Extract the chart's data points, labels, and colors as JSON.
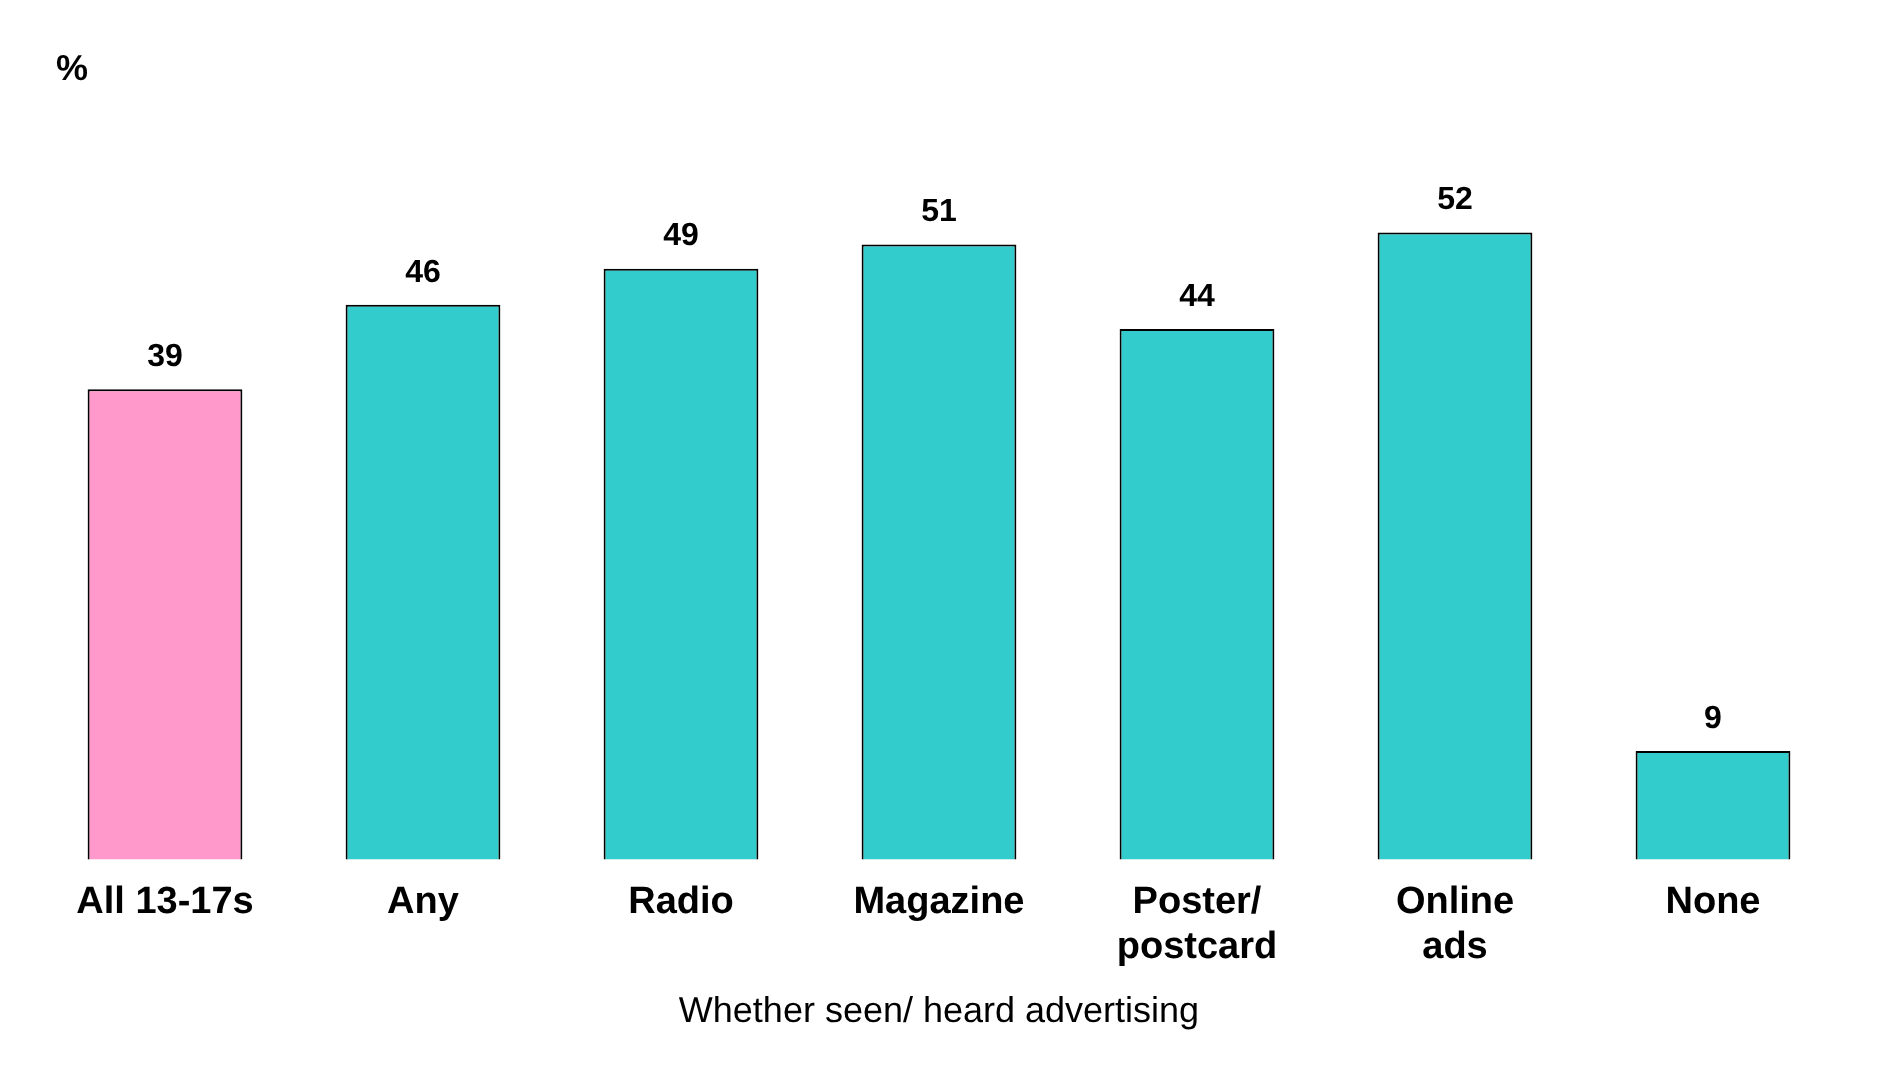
{
  "chart_data": {
    "type": "bar",
    "ylabel": "%",
    "xlabel": "Whether seen/ heard advertising",
    "categories": [
      "All 13-17s",
      "Any",
      "Radio",
      "Magazine",
      "Poster/\npostcard",
      "Online\nads",
      "None"
    ],
    "values": [
      39,
      46,
      49,
      51,
      44,
      52,
      9
    ],
    "colors": [
      "#ff99cc",
      "#33cccc",
      "#33cccc",
      "#33cccc",
      "#33cccc",
      "#33cccc",
      "#33cccc"
    ],
    "data_labels": true,
    "grid": false,
    "legend": false
  }
}
